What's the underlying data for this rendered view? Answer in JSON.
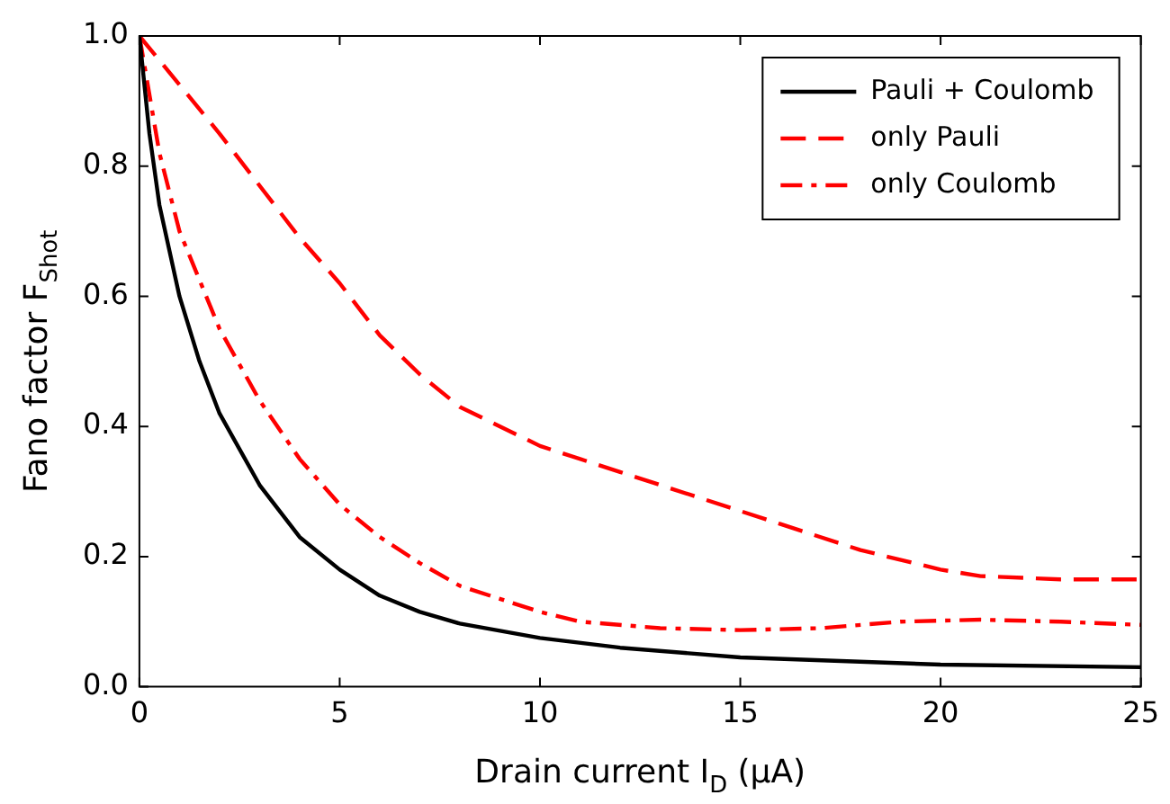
{
  "chart_data": {
    "type": "line",
    "xlabel": "Drain current I$_{D}$ (μA)",
    "ylabel": "Fano factor F$_{Shot}$",
    "xlim": [
      0,
      25
    ],
    "xticks": [
      0,
      5,
      10,
      15,
      20,
      25
    ],
    "ylim": [
      0,
      1
    ],
    "yticks": [
      {
        "value": 0,
        "label": "0.0"
      },
      {
        "value": 0.2,
        "label": "0.2"
      },
      {
        "value": 0.4,
        "label": "0.4"
      },
      {
        "value": 0.6,
        "label": "0.6"
      },
      {
        "value": 0.8,
        "label": "0.8"
      },
      {
        "value": 1,
        "label": "1.0"
      }
    ],
    "grid": false,
    "legend": "top right",
    "marker": "none",
    "series": [
      {
        "name": "Pauli + Coulomb",
        "color": "#000000",
        "line_style": "solid",
        "x": [
          0,
          0.25,
          0.5,
          1,
          1.5,
          2,
          3,
          4,
          5,
          6,
          7,
          8,
          10,
          12,
          15,
          20,
          25
        ],
        "values": [
          1.0,
          0.85,
          0.74,
          0.6,
          0.5,
          0.42,
          0.31,
          0.23,
          0.18,
          0.14,
          0.115,
          0.097,
          0.075,
          0.06,
          0.045,
          0.034,
          0.03
        ]
      },
      {
        "name": "only Pauli",
        "color": "#ff0000",
        "line_style": "dashed",
        "x": [
          0,
          2,
          4,
          5,
          6,
          7,
          8,
          10,
          12,
          14,
          16,
          18,
          20,
          21,
          23,
          25
        ],
        "values": [
          1.0,
          0.85,
          0.69,
          0.62,
          0.54,
          0.48,
          0.43,
          0.37,
          0.33,
          0.29,
          0.25,
          0.21,
          0.18,
          0.17,
          0.165,
          0.165
        ]
      },
      {
        "name": "only Coulomb",
        "color": "#ff0000",
        "line_style": "dashdot",
        "x": [
          0,
          0.5,
          1,
          2,
          3,
          4,
          5,
          6,
          7,
          8,
          10,
          11,
          13,
          15,
          17,
          19,
          21,
          23,
          25
        ],
        "values": [
          1.0,
          0.82,
          0.7,
          0.55,
          0.44,
          0.35,
          0.28,
          0.23,
          0.19,
          0.155,
          0.115,
          0.1,
          0.09,
          0.087,
          0.09,
          0.1,
          0.103,
          0.1,
          0.095
        ]
      }
    ]
  }
}
